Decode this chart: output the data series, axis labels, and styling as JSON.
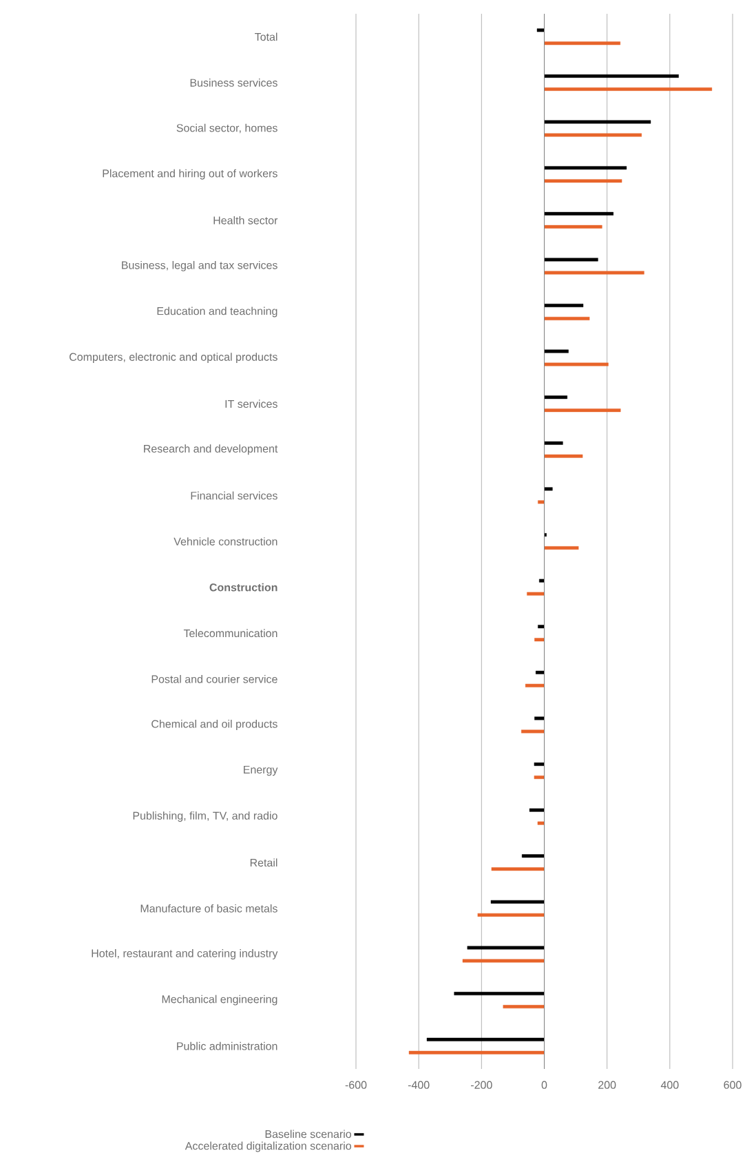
{
  "chart_data": {
    "type": "bar",
    "orientation": "horizontal",
    "categories": [
      "Total",
      "Business services",
      "Social sector, homes",
      "Placement and hiring out of workers",
      "Health sector",
      "Business, legal and tax services",
      "Education and teachning",
      "Computers, electronic and optical products",
      "IT services",
      "Research and development",
      "Financial services",
      "Vehnicle construction",
      "**Construction**",
      "Telecommunication",
      "Postal and courier service",
      "Chemical and oil products",
      "Energy",
      "Publishing, film, TV, and radio",
      "Retail",
      "Manufacture of basic metals",
      "Hotel, restaurant and catering industry",
      "Mechanical engineering",
      "Public administration"
    ],
    "series": [
      {
        "name": "Baseline scenario",
        "color": "#000000",
        "values": [
          -23,
          428,
          339,
          262,
          220,
          171,
          124,
          77,
          73,
          59,
          26,
          7,
          -16,
          -20,
          -27,
          -31,
          -32,
          -47,
          -71,
          -170,
          -245,
          -287,
          -374
        ]
      },
      {
        "name": "Accelerated digitalization scenario",
        "color": "#e8642a",
        "values": [
          242,
          534,
          310,
          247,
          184,
          318,
          144,
          204,
          243,
          122,
          -20,
          109,
          -55,
          -31,
          -60,
          -73,
          -32,
          -21,
          -168,
          -212,
          -260,
          -131,
          -431
        ]
      }
    ],
    "xlim": [
      -600,
      600
    ],
    "xticks": [
      -600,
      -400,
      -200,
      0,
      200,
      400,
      600
    ],
    "grid": "x",
    "legend": "bottom"
  }
}
